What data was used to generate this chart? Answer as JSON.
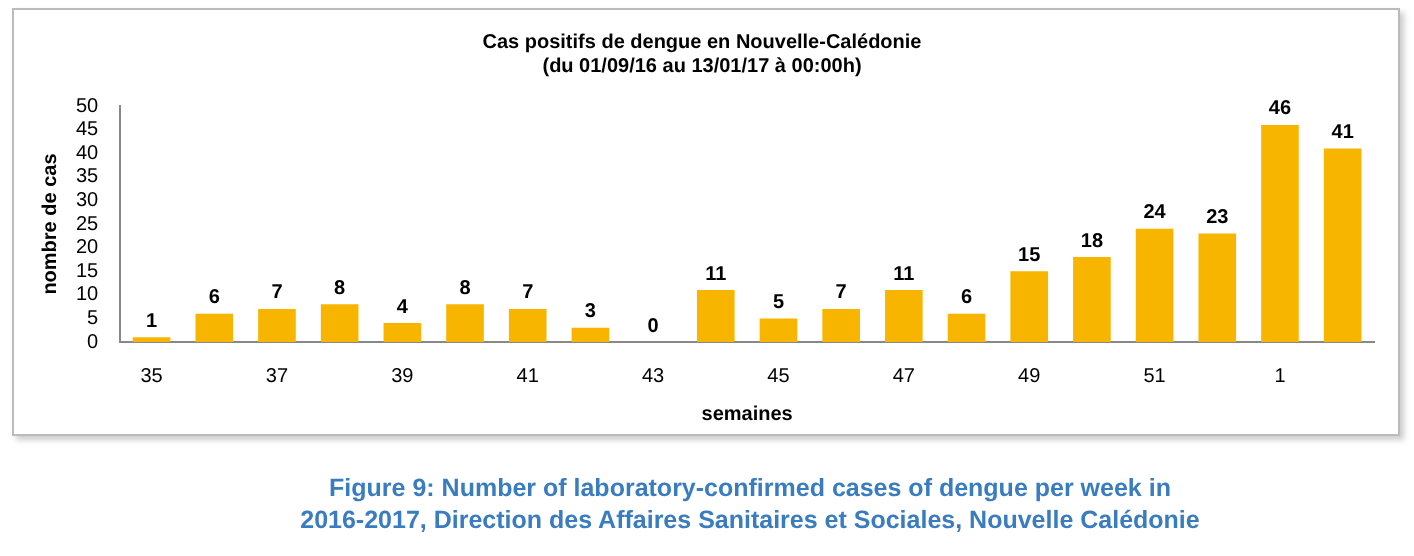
{
  "chart_data": {
    "type": "bar",
    "title": "Cas positifs de dengue en Nouvelle-Calédonie",
    "subtitle": "(du 01/09/16 au 13/01/17 à 00:00h)",
    "xlabel": "semaines",
    "ylabel": "nombre de cas",
    "categories": [
      "35",
      null,
      "37",
      null,
      "39",
      null,
      "41",
      null,
      "43",
      null,
      "45",
      null,
      "47",
      null,
      "49",
      null,
      "51",
      null,
      "1",
      null
    ],
    "values": [
      1,
      6,
      7,
      8,
      4,
      8,
      7,
      3,
      0,
      11,
      5,
      7,
      11,
      6,
      15,
      18,
      24,
      23,
      46,
      41
    ],
    "color": "#f7b500",
    "ylim": [
      0,
      50
    ],
    "yticks": [
      0,
      5,
      10,
      15,
      20,
      25,
      30,
      35,
      40,
      45,
      50
    ],
    "grid": false,
    "legend": false,
    "data_labels": true,
    "annotations": [
      "Figure 9: Number of laboratory-confirmed cases of dengue per week in 2016-2017, Direction des Affaires Sanitaires et Sociales, Nouvelle Calédonie"
    ]
  }
}
